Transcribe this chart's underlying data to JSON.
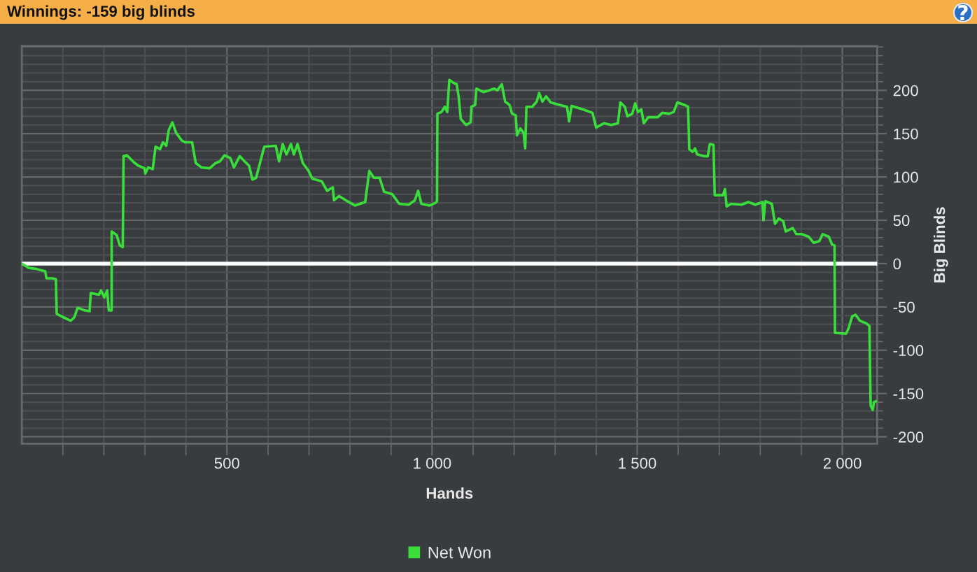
{
  "chart_data": {
    "type": "line",
    "title": "Winnings: -159 big blinds",
    "xlabel": "Hands",
    "ylabel": "Big Blinds",
    "xlim": [
      0,
      2085
    ],
    "ylim": [
      -208,
      251
    ],
    "xticks": [
      {
        "value": 100,
        "label": null
      },
      {
        "value": 200,
        "label": null
      },
      {
        "value": 300,
        "label": null
      },
      {
        "value": 400,
        "label": null
      },
      500,
      {
        "value": 600,
        "label": null
      },
      {
        "value": 700,
        "label": null
      },
      {
        "value": 800,
        "label": null
      },
      {
        "value": 900,
        "label": null
      },
      {
        "value": 1000,
        "label": "1 000"
      },
      {
        "value": 1100,
        "label": null
      },
      {
        "value": 1200,
        "label": null
      },
      {
        "value": 1300,
        "label": null
      },
      {
        "value": 1400,
        "label": null
      },
      {
        "value": 1500,
        "label": "1 500"
      },
      {
        "value": 1600,
        "label": null
      },
      {
        "value": 1700,
        "label": null
      },
      {
        "value": 1800,
        "label": null
      },
      {
        "value": 1900,
        "label": null
      },
      {
        "value": 2000,
        "label": "2 000"
      }
    ],
    "yticks": [
      -200,
      {
        "value": -190,
        "label": null
      },
      {
        "value": -180,
        "label": null
      },
      {
        "value": -170,
        "label": null
      },
      {
        "value": -160,
        "label": null
      },
      -150,
      {
        "value": -140,
        "label": null
      },
      {
        "value": -130,
        "label": null
      },
      {
        "value": -120,
        "label": null
      },
      {
        "value": -110,
        "label": null
      },
      -100,
      {
        "value": -90,
        "label": null
      },
      {
        "value": -80,
        "label": null
      },
      {
        "value": -70,
        "label": null
      },
      {
        "value": -60,
        "label": null
      },
      -50,
      {
        "value": -40,
        "label": null
      },
      {
        "value": -30,
        "label": null
      },
      {
        "value": -20,
        "label": null
      },
      {
        "value": -10,
        "label": null
      },
      0,
      {
        "value": 10,
        "label": null
      },
      {
        "value": 20,
        "label": null
      },
      {
        "value": 30,
        "label": null
      },
      {
        "value": 40,
        "label": null
      },
      50,
      {
        "value": 60,
        "label": null
      },
      {
        "value": 70,
        "label": null
      },
      {
        "value": 80,
        "label": null
      },
      {
        "value": 90,
        "label": null
      },
      100,
      {
        "value": 110,
        "label": null
      },
      {
        "value": 120,
        "label": null
      },
      {
        "value": 130,
        "label": null
      },
      {
        "value": 140,
        "label": null
      },
      150,
      {
        "value": 160,
        "label": null
      },
      {
        "value": 170,
        "label": null
      },
      {
        "value": 180,
        "label": null
      },
      {
        "value": 190,
        "label": null
      },
      200,
      {
        "value": 210,
        "label": null
      },
      {
        "value": 220,
        "label": null
      },
      {
        "value": 230,
        "label": null
      },
      {
        "value": 240,
        "label": null
      },
      {
        "value": 250,
        "label": null
      }
    ],
    "grid": true,
    "legend": "bottom",
    "ref_lines": [
      {
        "axis": "y",
        "value": 0,
        "color": "#ffffff"
      }
    ],
    "series": [
      {
        "name": "Net Won",
        "color": "#3ade3a",
        "x": [
          0,
          17,
          34,
          57,
          60,
          74,
          83,
          85,
          97,
          119,
          128,
          136,
          153,
          165,
          168,
          188,
          193,
          201,
          208,
          212,
          219,
          219,
          231,
          239,
          246,
          248,
          256,
          273,
          284,
          299,
          301,
          308,
          319,
          326,
          337,
          344,
          352,
          358,
          367,
          376,
          390,
          398,
          415,
          424,
          438,
          458,
          472,
          483,
          494,
          508,
          517,
          531,
          543,
          554,
          562,
          571,
          591,
          619,
          627,
          636,
          645,
          656,
          663,
          672,
          685,
          699,
          708,
          731,
          744,
          758,
          761,
          773,
          790,
          812,
          824,
          837,
          847,
          858,
          872,
          883,
          903,
          920,
          943,
          958,
          966,
          974,
          994,
          1008,
          1012,
          1013,
          1023,
          1031,
          1037,
          1042,
          1051,
          1060,
          1065,
          1070,
          1083,
          1094,
          1096,
          1105,
          1108,
          1125,
          1139,
          1151,
          1159,
          1170,
          1178,
          1189,
          1195,
          1204,
          1207,
          1215,
          1223,
          1227,
          1230,
          1244,
          1255,
          1261,
          1269,
          1278,
          1289,
          1312,
          1329,
          1334,
          1340,
          1368,
          1391,
          1400,
          1419,
          1437,
          1453,
          1459,
          1470,
          1476,
          1488,
          1495,
          1502,
          1510,
          1516,
          1527,
          1550,
          1561,
          1578,
          1589,
          1598,
          1616,
          1624,
          1627,
          1635,
          1641,
          1646,
          1663,
          1672,
          1677,
          1686,
          1689,
          1709,
          1714,
          1718,
          1729,
          1754,
          1771,
          1788,
          1805,
          1808,
          1812,
          1828,
          1836,
          1845,
          1856,
          1862,
          1879,
          1888,
          1901,
          1918,
          1930,
          1944,
          1952,
          1967,
          1975,
          1981,
          1982,
          2009,
          2015,
          2024,
          2032,
          2043,
          2058,
          2066,
          2069,
          2074,
          2077,
          2082
        ],
        "values": [
          0,
          -5,
          -6,
          -9,
          -17,
          -17,
          -18,
          -58,
          -61,
          -66,
          -62,
          -51,
          -54,
          -55,
          -34,
          -36,
          -31,
          -39,
          -31,
          -54,
          -54,
          37,
          33,
          21,
          19,
          124,
          125,
          117,
          113,
          110,
          104,
          111,
          109,
          135,
          132,
          140,
          136,
          154,
          163,
          151,
          142,
          140,
          140,
          116,
          111,
          110,
          116,
          118,
          125,
          122,
          111,
          124,
          118,
          113,
          97,
          99,
          135,
          136,
          118,
          138,
          126,
          138,
          126,
          138,
          116,
          107,
          98,
          95,
          84,
          88,
          73,
          78,
          73,
          67,
          69,
          71,
          107,
          99,
          99,
          83,
          80,
          69,
          68,
          73,
          84,
          69,
          67,
          70,
          72,
          173,
          175,
          181,
          175,
          212,
          209,
          207,
          192,
          167,
          160,
          163,
          181,
          183,
          202,
          198,
          200,
          202,
          200,
          207,
          187,
          183,
          173,
          171,
          148,
          156,
          151,
          133,
          181,
          181,
          187,
          197,
          187,
          193,
          186,
          183,
          181,
          164,
          182,
          178,
          174,
          157,
          162,
          160,
          162,
          186,
          181,
          170,
          173,
          185,
          175,
          178,
          162,
          169,
          169,
          174,
          173,
          175,
          186,
          183,
          181,
          132,
          129,
          133,
          126,
          124,
          124,
          138,
          137,
          79,
          79,
          86,
          66,
          69,
          68,
          71,
          68,
          71,
          50,
          72,
          69,
          46,
          52,
          49,
          37,
          41,
          34,
          34,
          31,
          24,
          26,
          34,
          31,
          22,
          21,
          -80,
          -81,
          -75,
          -61,
          -59,
          -66,
          -69,
          -72,
          -164,
          -169,
          -160,
          -159
        ]
      }
    ]
  }
}
